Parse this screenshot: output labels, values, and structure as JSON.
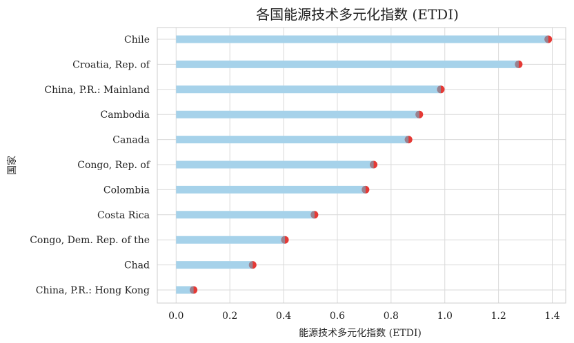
{
  "chart_data": {
    "type": "bar",
    "orientation": "horizontal",
    "style": "lollipop",
    "title": "各国能源技术多元化指数 (ETDI)",
    "xlabel": "能源技术多元化指数 (ETDI)",
    "ylabel": "国家",
    "xlim": [
      -0.07,
      1.45
    ],
    "xticks": [
      0.0,
      0.2,
      0.4,
      0.6,
      0.8,
      1.0,
      1.2,
      1.4
    ],
    "xtick_labels": [
      "0.0",
      "0.2",
      "0.4",
      "0.6",
      "0.8",
      "1.0",
      "1.2",
      "1.4"
    ],
    "grid": true,
    "categories": [
      "Chile",
      "Croatia, Rep. of",
      "China, P.R.: Mainland",
      "Cambodia",
      "Canada",
      "Congo, Rep. of",
      "Colombia",
      "Costa Rica",
      "Congo, Dem. Rep. of the",
      "Chad",
      "China, P.R.: Hong Kong"
    ],
    "values": [
      1.38,
      1.27,
      0.98,
      0.9,
      0.86,
      0.73,
      0.7,
      0.51,
      0.4,
      0.28,
      0.06
    ],
    "colors": {
      "bar": "#a6d2ea",
      "dot": "#e53935"
    }
  }
}
